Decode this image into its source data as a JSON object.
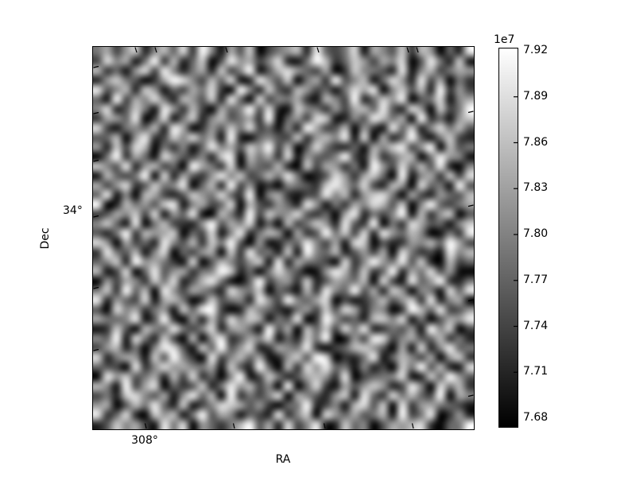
{
  "figure": {
    "background_color": "#ffffff",
    "text_color": "#000000"
  },
  "chart_data": {
    "type": "heatmap",
    "title": "",
    "xlabel": "RA",
    "ylabel": "Dec",
    "x_tick_labels": [
      "308°"
    ],
    "y_tick_labels": [
      "34°"
    ],
    "grid": false,
    "colormap": "gray",
    "value_scale_factor": "1e7",
    "value_range": [
      7.68,
      7.92
    ],
    "colorbar": {
      "scale_label": "1e7",
      "position": "right",
      "tick_labels": [
        "7.92",
        "7.89",
        "7.86",
        "7.83",
        "7.80",
        "7.77",
        "7.74",
        "7.71",
        "7.68"
      ],
      "top_color": "#ffffff",
      "bottom_color": "#000000"
    },
    "grid_size": [
      40,
      40
    ],
    "values_hex_rows": [
      "7a49c28b6d3f81a5c0479b2e647d1a85c3b9062e",
      "4d8a17f3b26c05e9a48d217fb36c94a8d05e72c1",
      "b3619d4e827a2c48f15bd964a03c8752e18b47a9",
      "29c7503afd84b6d12e95c07a3f58b16d92e4a073",
      "e58b2c9164a7d30f82c53b94617dae08c5b2f394",
      "61f4a8d72b95c2e60d487a31b84f26c9e057d18a",
      "8d25c71e93b40a68f5d21c87394ab6e52d90c47f",
      "3a96e04d17c28b57a3f0694dc1285eb7a0f3619c",
      "d41786b2ea0395c7d46182fa45b0931e6c28d7b5",
      "56b09e34c8d7a1f206854c39b8e1d0a26f517c42",
      "92c4db073816e8a5c9f4b05d73261a8ce49f0b57",
      "07f3a61d95482ce0b7a3d19658f42c36ab07e981",
      "c85e29b460fa73d1865b20c4a9371f94d6b5e208",
      "1b647f0d2a539e8c46b7e7025d93ac60f18a3c4d",
      "a49d35c78e06b2f491308753cea6d42b90d671f5",
      "6e180ba425c97d63f08a3145e8b29cd70a42965b",
      "f02b795ce18a46d0b53962e9173a8db5c08f647a",
      "35a8c4d196e10b72f4c89d5360ae2748f1b39c05",
      "8c61e07b4329f5a8d160b47c92e53f073da5618c",
      "527f3b9ac064d18e27b90a35f7c4d2e96b80173e",
      "d90a462e85b3c7f5091276e84a1dc052398b6fa4",
      "3e75b18d0649a0c3e672c1f86b2594a0d7341e8b",
      "68c2f9a731d05b849c1e2a7640d38f97e5c20b46",
      "b14d06e59a378fc2607d85019eb4c36f2a7d5910",
      "094a83c7d25be7106f4893c25a87b0d41e69f327",
      "7c3f6b0e94a852d97c0641b3e86f5a2c90871d6e",
      "e2964d1ab703c5782e94f86ad04137b59c3e28a0",
      "50d8a3791c6ef402b8631794c5da28803fb6e459",
      "a768e15f3092b4d8ca175e03f9462bc8d1705a9e",
      "13c50b86e748d29a61f5a0b6c4d7e237591f8c04",
      "86f1d72c40b09e35a8d162c7f0194ed48a56b372",
      "49b2708ed51c6f59d23a87e3046bc950a1d28e67",
      "d27a91c5f830e48b6a129c5fd0327e16b84a09c3",
      "6540e38d9a87a1c52f60b3d9e6718240c7f5b21d",
      "0e9c57a2b4d3608f14c725ab93e04678d12c6f95",
      "b81f4ad0635c27e9b480f06d31a59c924e80d7b3",
      "472cd85a19e6b0f3748d0a8529c1e63d7b64f0a8",
      "9a05b7e62c148dca593067f2481bd5c0e39a7641",
      "e36d20c9b17f5a81642e38c0d96a57b1f47e0392",
      "25c8a41e7d09637bf5a2d48e12c6805a9bd3067f"
    ]
  }
}
